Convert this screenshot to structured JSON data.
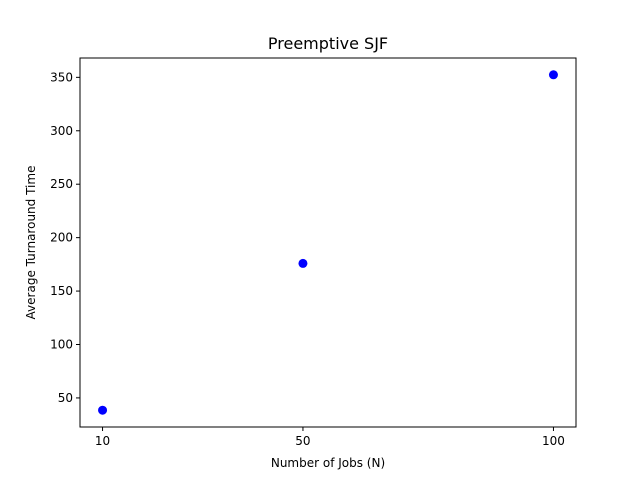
{
  "chart_data": {
    "type": "scatter",
    "title": "Preemptive SJF",
    "xlabel": "Number of Jobs (N)",
    "ylabel": "Average Turnaround Time",
    "x": [
      10,
      50,
      100
    ],
    "y": [
      38.5,
      175.9,
      352.4
    ],
    "xticks": [
      10,
      50,
      100
    ],
    "yticks": [
      50,
      100,
      150,
      200,
      250,
      300,
      350
    ],
    "xlim": [
      5.5,
      104.5
    ],
    "ylim": [
      22.8,
      368.1
    ],
    "grid": false,
    "legend": "none",
    "marker_color": "#0000ff"
  }
}
